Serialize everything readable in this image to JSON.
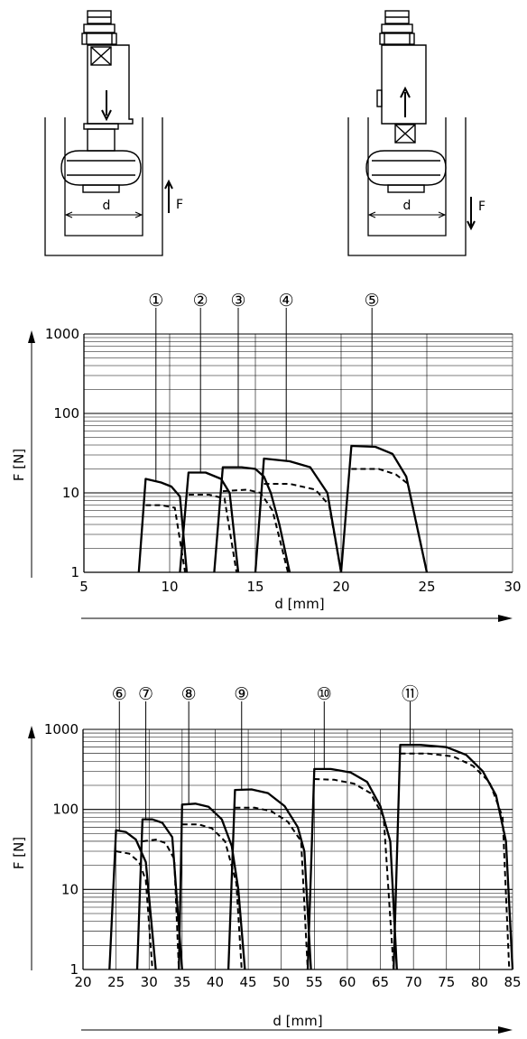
{
  "diagrams": [
    {
      "dimension_label": "d",
      "force_label": "F",
      "insert_direction": "down",
      "force_direction": "up"
    },
    {
      "dimension_label": "d",
      "force_label": "F",
      "insert_direction": "up",
      "force_direction": "down"
    }
  ],
  "chart_data": [
    {
      "type": "line",
      "scale": "log-y",
      "ylabel": "F [N]",
      "xlabel": "d [mm]",
      "xlim": [
        5,
        30
      ],
      "ylim": [
        1,
        1000
      ],
      "xticks": [
        "5",
        "10",
        "15",
        "20",
        "25",
        "30"
      ],
      "yticks": [
        "1",
        "10",
        "100",
        "1000"
      ],
      "markers": [
        {
          "label": "①",
          "d": 9.2,
          "curve": [
            [
              8.2,
              1
            ],
            [
              8.6,
              15
            ],
            [
              9.5,
              13.5
            ],
            [
              10.1,
              12
            ],
            [
              10.6,
              9
            ],
            [
              11.0,
              1
            ]
          ],
          "dashed": [
            [
              8.6,
              7
            ],
            [
              9.5,
              7
            ],
            [
              10.3,
              6.5
            ],
            [
              10.9,
              1
            ]
          ]
        },
        {
          "label": "②",
          "d": 11.8,
          "curve": [
            [
              10.6,
              1
            ],
            [
              11.1,
              18
            ],
            [
              12.1,
              18
            ],
            [
              13.0,
              15
            ],
            [
              13.5,
              10
            ],
            [
              14.0,
              1
            ]
          ],
          "dashed": [
            [
              11.1,
              9.5
            ],
            [
              12.3,
              9.5
            ],
            [
              13.2,
              8.5
            ],
            [
              13.9,
              1
            ]
          ]
        },
        {
          "label": "③",
          "d": 14.0,
          "curve": [
            [
              12.6,
              1
            ],
            [
              13.1,
              21
            ],
            [
              14.2,
              21
            ],
            [
              15.0,
              20
            ],
            [
              15.5,
              16
            ],
            [
              15.9,
              10
            ],
            [
              16.4,
              4
            ],
            [
              17.0,
              1
            ]
          ],
          "dashed": [
            [
              13.1,
              10.5
            ],
            [
              14.5,
              11
            ],
            [
              15.3,
              10
            ],
            [
              16.0,
              6
            ],
            [
              16.9,
              1
            ]
          ]
        },
        {
          "label": "④",
          "d": 16.8,
          "curve": [
            [
              15.0,
              1
            ],
            [
              15.5,
              27
            ],
            [
              17.0,
              25
            ],
            [
              18.2,
              21
            ],
            [
              19.2,
              10
            ],
            [
              20.0,
              1
            ]
          ],
          "dashed": [
            [
              15.5,
              13
            ],
            [
              17.0,
              13
            ],
            [
              18.5,
              11
            ],
            [
              19.3,
              7
            ],
            [
              20.0,
              1
            ]
          ]
        },
        {
          "label": "⑤",
          "d": 21.8,
          "curve": [
            [
              20.0,
              1
            ],
            [
              20.6,
              39
            ],
            [
              22.0,
              38
            ],
            [
              23.0,
              31
            ],
            [
              23.8,
              16
            ],
            [
              25.0,
              1
            ]
          ],
          "dashed": [
            [
              20.6,
              20
            ],
            [
              22.2,
              20
            ],
            [
              23.2,
              17
            ],
            [
              23.9,
              13
            ],
            [
              25.0,
              1
            ]
          ]
        }
      ]
    },
    {
      "type": "line",
      "scale": "log-y",
      "ylabel": "F [N]",
      "xlabel": "d [mm]",
      "xlim": [
        20,
        85
      ],
      "ylim": [
        1,
        1000
      ],
      "xticks": [
        "20",
        "25",
        "30",
        "35",
        "40",
        "45",
        "50",
        "55",
        "60",
        "65",
        "70",
        "75",
        "80",
        "85"
      ],
      "yticks": [
        "1",
        "10",
        "100",
        "1000"
      ],
      "markers": [
        {
          "label": "⑥",
          "d": 25.5,
          "curve": [
            [
              24.0,
              1
            ],
            [
              25.0,
              55
            ],
            [
              26.5,
              52
            ],
            [
              28.0,
              42
            ],
            [
              29.5,
              22
            ],
            [
              31.0,
              1
            ]
          ],
          "dashed": [
            [
              25.0,
              30
            ],
            [
              27.0,
              28
            ],
            [
              28.5,
              22
            ],
            [
              29.5,
              13
            ],
            [
              30.5,
              1
            ]
          ]
        },
        {
          "label": "⑦",
          "d": 29.5,
          "curve": [
            [
              28.2,
              1
            ],
            [
              29.0,
              75
            ],
            [
              30.5,
              75
            ],
            [
              32.0,
              68
            ],
            [
              33.5,
              45
            ],
            [
              35.0,
              1
            ]
          ],
          "dashed": [
            [
              29.0,
              40
            ],
            [
              31.0,
              42
            ],
            [
              32.5,
              38
            ],
            [
              33.8,
              24
            ],
            [
              34.5,
              1
            ]
          ]
        },
        {
          "label": "⑧",
          "d": 36.0,
          "curve": [
            [
              34.5,
              1
            ],
            [
              35.0,
              115
            ],
            [
              37.0,
              118
            ],
            [
              39.0,
              108
            ],
            [
              41.0,
              75
            ],
            [
              42.5,
              35
            ],
            [
              43.5,
              10
            ],
            [
              44.5,
              1
            ]
          ],
          "dashed": [
            [
              35.0,
              65
            ],
            [
              37.5,
              65
            ],
            [
              39.5,
              58
            ],
            [
              41.5,
              40
            ],
            [
              43.2,
              12
            ],
            [
              44.0,
              1
            ]
          ]
        },
        {
          "label": "⑨",
          "d": 44.0,
          "curve": [
            [
              42.0,
              1
            ],
            [
              43.0,
              175
            ],
            [
              45.5,
              178
            ],
            [
              48.0,
              160
            ],
            [
              50.5,
              110
            ],
            [
              52.5,
              60
            ],
            [
              53.5,
              30
            ],
            [
              54.5,
              1
            ]
          ],
          "dashed": [
            [
              43.0,
              105
            ],
            [
              46.0,
              105
            ],
            [
              48.5,
              95
            ],
            [
              51.0,
              70
            ],
            [
              53.0,
              40
            ],
            [
              54.0,
              1
            ]
          ]
        },
        {
          "label": "⑩",
          "d": 56.5,
          "curve": [
            [
              54.0,
              1
            ],
            [
              55.0,
              320
            ],
            [
              57.5,
              320
            ],
            [
              60.5,
              290
            ],
            [
              63.0,
              220
            ],
            [
              65.0,
              110
            ],
            [
              66.5,
              40
            ],
            [
              67.5,
              1
            ]
          ],
          "dashed": [
            [
              55.0,
              240
            ],
            [
              58.0,
              235
            ],
            [
              61.0,
              210
            ],
            [
              63.5,
              160
            ],
            [
              65.5,
              80
            ],
            [
              67.0,
              1
            ]
          ]
        },
        {
          "label": "⑪",
          "d": 69.5,
          "curve": [
            [
              67.0,
              1
            ],
            [
              68.0,
              640
            ],
            [
              71.0,
              640
            ],
            [
              75.0,
              600
            ],
            [
              78.0,
              480
            ],
            [
              80.5,
              300
            ],
            [
              82.5,
              150
            ],
            [
              84.0,
              40
            ],
            [
              85.0,
              1
            ]
          ],
          "dashed": [
            [
              68.0,
              500
            ],
            [
              72.0,
              500
            ],
            [
              76.0,
              460
            ],
            [
              79.0,
              350
            ],
            [
              81.5,
              220
            ],
            [
              83.5,
              80
            ],
            [
              84.5,
              1
            ]
          ]
        }
      ]
    }
  ]
}
